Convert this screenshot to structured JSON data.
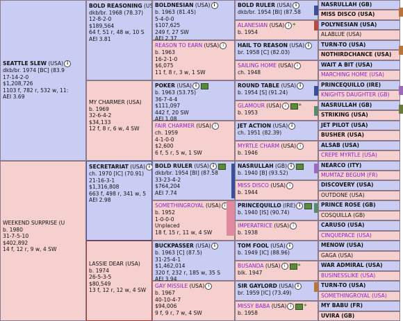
{
  "gen1": [
    {
      "name": "SEATTLE SLEW",
      "flag": "(USA)",
      "lines": [
        "dkb/br. 1974 [BC] (83.9",
        "17-14-2-0",
        "$1,208,726",
        "1103 f, 782 r, 532 w, 11:",
        "AEI 3.69"
      ]
    },
    {
      "name": "WEEKEND SURPRISE",
      "flag": "(U",
      "lines": [
        "b. 1980",
        "31-7-5-10",
        "$402,892",
        "14 f, 12 r, 9 w, 4 SW"
      ]
    }
  ],
  "gen2": [
    {
      "name": "BOLD REASONING",
      "flag": "(USA)",
      "lines": [
        "dkb/br. 1968 (78.37)",
        "12-8-2-0",
        "$189,564",
        "64 f, 51 r, 48 w, 10 S",
        "AEI 3.81"
      ]
    },
    {
      "name": "MY CHARMER",
      "flag": "(USA)",
      "lines": [
        "b. 1969",
        "32-6-4-2",
        "$34,133",
        "12 f, 8 r, 6 w, 4 SW"
      ]
    },
    {
      "name": "SECRETARIAT",
      "flag": "(USA)",
      "lines": [
        "ch. 1970 [IC] (70.91)",
        "21-16-3-1",
        "$1,316,808",
        "663 f, 498 r, 341 w, 5",
        "AEI 2.98"
      ]
    },
    {
      "name": "LASSIE DEAR",
      "flag": "(USA)",
      "lines": [
        "b. 1974",
        "26-5-3-5",
        "$80,549",
        "13 f, 12 r, 12 w, 4 SW"
      ]
    }
  ],
  "gen3": [
    {
      "name": "BOLDNESIAN",
      "flag": "(USA)",
      "lines": [
        "b. 1963 (81.45)",
        "5-4-0-0",
        "$107,625",
        "249 f, 27 SW",
        "AEI 2.37"
      ]
    },
    {
      "name": "REASON TO EARN",
      "flag": "(USA)",
      "lines": [
        "b. 1963",
        "16-2-1-0",
        "$6,075",
        "11 f, 8 r, 3 w, 1 SW"
      ]
    },
    {
      "name": "POKER",
      "flag": "(USA)",
      "lines": [
        "b. 1963 (53.75)",
        "36-7-4-4",
        "$111,097",
        "442 f, 20 SW",
        "AEI 1.08"
      ]
    },
    {
      "name": "FAIR CHARMER",
      "flag": "(USA)",
      "lines": [
        "ch. 1959",
        "4-1-0-0",
        "$2,600",
        "6 f, 5 r, 5 w, 1 SW"
      ]
    },
    {
      "name": "BOLD RULER",
      "flag": "(USA)",
      "lines": [
        "dkb/br. 1954 [BI] (87.58",
        "33-23-4-2",
        "$764,204",
        "AEI 7.74"
      ]
    },
    {
      "name": "SOMETHINGROYAL",
      "flag": "(USA)",
      "lines": [
        "b. 1952",
        "1-0-0-0",
        "Unplaced",
        "18 f, 15 r, 11 w, 4 SW"
      ]
    },
    {
      "name": "BUCKPASSER",
      "flag": "(USA)",
      "lines": [
        "b. 1963 [C] (87.5)",
        "31-25-4-1",
        "$1,462,014",
        "320 f, 232 r, 185 w, 35 S",
        "AEI 3.94"
      ]
    },
    {
      "name": "GAY MISSILE",
      "flag": "(USA)",
      "lines": [
        "b. 1967",
        "40-10-4-7",
        "$94,006",
        "9 f, 9 r, 7 w, 4 SW"
      ]
    }
  ],
  "gen4": [
    {
      "name": "BOLD RULER",
      "flag": "(USA)",
      "lines": [
        "dkb/br. 1954 [BI] (87.58"
      ]
    },
    {
      "name": "ALANESIAN",
      "flag": "(USA)",
      "lines": [
        "b. 1954"
      ]
    },
    {
      "name": "HAIL TO REASON",
      "flag": "(USA)",
      "lines": [
        "br. 1958 [C] (82.03)"
      ]
    },
    {
      "name": "SAILING HOME",
      "flag": "(USA)",
      "lines": [
        "ch. 1948"
      ]
    },
    {
      "name": "ROUND TABLE",
      "flag": "(USA)",
      "lines": [
        "b. 1954 [S] (91.24)"
      ]
    },
    {
      "name": "GLAMOUR",
      "flag": "(USA)",
      "lines": [
        "b. 1953"
      ]
    },
    {
      "name": "JET ACTION",
      "flag": "(USA)",
      "lines": [
        "ch. 1951 (82.39)"
      ]
    },
    {
      "name": "MYRTLE CHARM",
      "flag": "(USA)",
      "lines": [
        "b. 1946"
      ]
    },
    {
      "name": "NASRULLAH",
      "flag": "(GB)",
      "lines": [
        "b. 1940 [B] (93.52)"
      ]
    },
    {
      "name": "MISS DISCO",
      "flag": "(USA)",
      "lines": [
        "b. 1944"
      ]
    },
    {
      "name": "PRINCEQUILLO",
      "flag": "(IRE)",
      "lines": [
        "b. 1940 [IS] (90.74)"
      ]
    },
    {
      "name": "IMPERATRICE",
      "flag": "(USA)",
      "lines": [
        "b. 1938"
      ]
    },
    {
      "name": "TOM FOOL",
      "flag": "(USA)",
      "lines": [
        "b. 1949 [IC] (88.96)"
      ]
    },
    {
      "name": "BUSANDA",
      "flag": "(USA)",
      "lines": [
        "blk. 1947"
      ]
    },
    {
      "name": "SIR GAYLORD",
      "flag": "(USA)",
      "lines": [
        "br. 1959 [IC] (73.49)"
      ]
    },
    {
      "name": "MISSY BABA",
      "flag": "(USA)",
      "lines": [
        "b. 1958"
      ]
    }
  ],
  "gen5": [
    "NASRULLAH (GB)",
    "MISS DISCO (USA)",
    "POLYNESIAN (USA)",
    "ALABLUE (USA)",
    "TURN-TO (USA)",
    "NOTHIRDCHANCE (USA)",
    "WAIT A BIT (USA)",
    "MARCHING HOME (USA)",
    "PRINCEQUILLO (IRE)",
    "KNIGHTS DAUGHTER (GB)",
    "NASRULLAH (GB)",
    "STRIKING (USA)",
    "JET PILOT (USA)",
    "BUSHER (USA)",
    "ALSAB (USA)",
    "CREPE MYRTLE (USA)",
    "NEARCO (ITY)",
    "MUMTAZ BEGUM (FR)",
    "DISCOVERY (USA)",
    "OUTDONE (USA)",
    "PRINCE ROSE (GB)",
    "COSQUILLA (GB)",
    "CARUSO (USA)",
    "CINQUEPACE (USA)",
    "MENOW (USA)",
    "GAGA (USA)",
    "WAR ADMIRAL (USA)",
    "BUSINESSLIKE (USA)",
    "TURN-TO (USA)",
    "SOMETHINGROYAL (USA)",
    "MY BABU (FR)",
    "UVIRA (GB)"
  ],
  "icons": {
    "info": "i",
    "video": "video-icon",
    "star": "*"
  }
}
